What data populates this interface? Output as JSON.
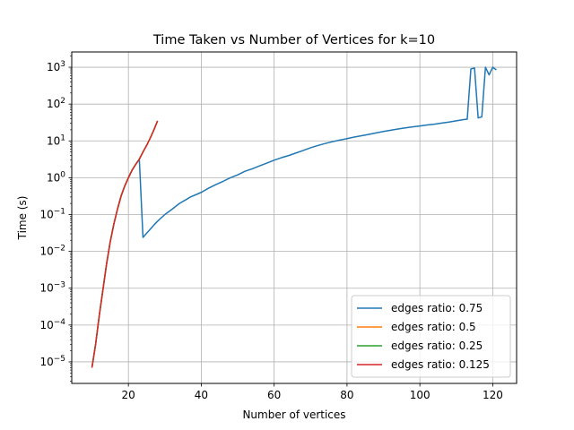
{
  "chart_data": {
    "type": "line",
    "title": "Time Taken vs Number of Vertices for k=10",
    "xlabel": "Number of vertices",
    "ylabel": "Time (s)",
    "xlim": [
      4.45,
      126.55
    ],
    "ylim": [
      2.6e-06,
      2600.0
    ],
    "yscale": "log",
    "grid": true,
    "legend_position": "lower right",
    "x_ticks": [
      20,
      40,
      60,
      80,
      100,
      120
    ],
    "y_ticks": [
      {
        "value": 1e-05,
        "base": "10",
        "exp": "−5"
      },
      {
        "value": 0.0001,
        "base": "10",
        "exp": "−4"
      },
      {
        "value": 0.001,
        "base": "10",
        "exp": "−3"
      },
      {
        "value": 0.01,
        "base": "10",
        "exp": "−2"
      },
      {
        "value": 0.1,
        "base": "10",
        "exp": "−1"
      },
      {
        "value": 1,
        "base": "10",
        "exp": "0"
      },
      {
        "value": 10,
        "base": "10",
        "exp": "1"
      },
      {
        "value": 100,
        "base": "10",
        "exp": "2"
      },
      {
        "value": 1000,
        "base": "10",
        "exp": "3"
      }
    ],
    "series": [
      {
        "name": "edges ratio: 0.75",
        "color": "#1f77b4",
        "x": [
          10,
          11,
          12,
          13,
          14,
          15,
          16,
          17,
          18,
          19,
          20,
          21,
          22,
          23,
          24,
          25,
          26,
          27,
          28,
          30,
          32,
          34,
          36,
          37,
          40,
          42,
          44,
          46,
          48,
          50,
          52,
          54,
          56,
          58,
          60,
          62,
          64,
          66,
          68,
          70,
          72,
          74,
          76,
          78,
          80,
          82,
          84,
          86,
          88,
          90,
          92,
          94,
          96,
          98,
          100,
          102,
          104,
          106,
          108,
          110,
          112,
          113,
          114,
          115,
          116,
          117,
          118,
          119,
          120,
          121
        ],
        "y": [
          7e-06,
          3e-05,
          0.00018,
          0.0009,
          0.0045,
          0.018,
          0.055,
          0.14,
          0.32,
          0.6,
          1.0,
          1.6,
          2.3,
          3.2,
          0.024,
          0.031,
          0.04,
          0.052,
          0.066,
          0.1,
          0.14,
          0.2,
          0.26,
          0.3,
          0.4,
          0.52,
          0.65,
          0.8,
          1.0,
          1.2,
          1.5,
          1.75,
          2.1,
          2.5,
          3.0,
          3.5,
          4.0,
          4.7,
          5.5,
          6.5,
          7.5,
          8.5,
          9.5,
          10.5,
          11.5,
          12.7,
          13.8,
          15,
          16.5,
          18,
          19.5,
          21,
          22.5,
          24,
          25.5,
          27,
          28.5,
          30.5,
          32.5,
          35,
          38,
          39,
          900,
          950,
          42,
          45,
          1000,
          620,
          1000,
          850
        ]
      },
      {
        "name": "edges ratio: 0.5",
        "color": "#ff7f0e",
        "x": [
          10,
          11,
          12,
          13,
          14,
          15,
          16,
          17,
          18,
          19,
          20,
          21,
          22,
          23,
          24,
          25,
          26,
          27,
          28
        ],
        "y": [
          7e-06,
          3e-05,
          0.00018,
          0.0009,
          0.0045,
          0.018,
          0.055,
          0.14,
          0.32,
          0.6,
          1.0,
          1.6,
          2.3,
          3.2,
          5,
          7.5,
          12,
          20,
          35
        ]
      },
      {
        "name": "edges ratio: 0.25",
        "color": "#2ca02c",
        "x": [
          10,
          11,
          12,
          13,
          14,
          15,
          16,
          17,
          18,
          19,
          20,
          21,
          22,
          23,
          24,
          25,
          26,
          27,
          28
        ],
        "y": [
          7e-06,
          3e-05,
          0.00018,
          0.0009,
          0.0045,
          0.018,
          0.055,
          0.14,
          0.32,
          0.6,
          1.0,
          1.6,
          2.3,
          3.2,
          5,
          7.5,
          12,
          20,
          35
        ]
      },
      {
        "name": "edges ratio: 0.125",
        "color": "#d62728",
        "x": [
          10,
          11,
          12,
          13,
          14,
          15,
          16,
          17,
          18,
          19,
          20,
          21,
          22,
          23,
          24,
          25,
          26,
          27,
          28
        ],
        "y": [
          7e-06,
          3e-05,
          0.00018,
          0.0009,
          0.0045,
          0.018,
          0.055,
          0.14,
          0.32,
          0.6,
          1.0,
          1.6,
          2.3,
          3.2,
          5,
          7.5,
          12,
          20,
          35
        ]
      }
    ]
  }
}
